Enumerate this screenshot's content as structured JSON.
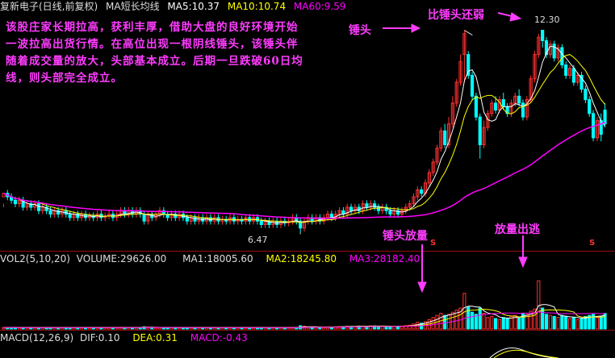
{
  "header_k": {
    "name": "复新电子(日线,前复权)",
    "ma_name": "MA短长均线",
    "ma5": "MA5:10.37",
    "ma10": "MA10:10.74",
    "ma60": "MA60:9.59"
  },
  "header_vol": {
    "name": "VOL2(5,10,20)",
    "volume": "VOLUME:29626.00",
    "ma1": "MA1:18005.60",
    "ma2": "MA2:18245.80",
    "ma3": "MA3:28182.40"
  },
  "header_macd": {
    "name": "MACD(12,26,9)",
    "dif": "DIF:0.10",
    "dea": "DEA:0.31",
    "macd": "MACD:-0.43"
  },
  "annotations": {
    "commentary": "该股庄家长期拉高，获利丰厚，借助大盘的良好环境开始一波拉高出货行情。在高位出现一根阴线锤头，该锤头伴随着成交量的放大，头部基本成立。后期一旦跌破60日均线，则头部完全成立。",
    "hammer": "锤头",
    "weaker": "比锤头还弱",
    "hammer_volume": "锤头放量",
    "volume_escape": "放量出逃",
    "s_marker": "S",
    "high_label": "12.30",
    "low_label": "6.47"
  },
  "colors": {
    "up": "#ff3232",
    "down": "#00ffff",
    "ma5": "#ffffff",
    "ma10": "#ffff00",
    "ma60": "#ff00ff",
    "annotation": "#ff3cff",
    "divider": "#9a1010"
  },
  "chart_data": [
    {
      "type": "candlestick",
      "title": "复新电子(日线,前复权)",
      "y_range": [
        6.2,
        12.8
      ],
      "max_price": 12.3,
      "min_price": 6.47,
      "series": [
        {
          "name": "MA5",
          "last": 10.37
        },
        {
          "name": "MA10",
          "last": 10.74
        },
        {
          "name": "MA60",
          "last": 9.59
        }
      ],
      "candles": [
        [
          7.5,
          7.6,
          7.3,
          7.2
        ],
        [
          7.6,
          7.5,
          7.7,
          7.4
        ],
        [
          7.5,
          7.4,
          7.6,
          7.3
        ],
        [
          7.4,
          7.3,
          7.5,
          7.2
        ],
        [
          7.3,
          7.4,
          7.5,
          7.2
        ],
        [
          7.4,
          7.2,
          7.5,
          7.1
        ],
        [
          7.2,
          7.3,
          7.4,
          7.1
        ],
        [
          7.3,
          7.2,
          7.4,
          7.1
        ],
        [
          7.2,
          7.3,
          7.4,
          7.1
        ],
        [
          7.3,
          7.1,
          7.4,
          7.0
        ],
        [
          7.1,
          7.2,
          7.3,
          7.0
        ],
        [
          7.2,
          7.1,
          7.3,
          7.0
        ],
        [
          7.1,
          7.0,
          7.2,
          6.9
        ],
        [
          7.0,
          7.1,
          7.2,
          6.9
        ],
        [
          7.1,
          7.0,
          7.2,
          6.9
        ],
        [
          7.0,
          7.1,
          7.2,
          6.9
        ],
        [
          7.1,
          7.0,
          7.2,
          6.9
        ],
        [
          7.0,
          6.9,
          7.1,
          6.8
        ],
        [
          6.9,
          7.0,
          7.1,
          6.8
        ],
        [
          7.0,
          6.9,
          7.1,
          6.8
        ],
        [
          6.9,
          7.0,
          7.1,
          6.8
        ],
        [
          7.0,
          6.9,
          7.1,
          6.8
        ],
        [
          6.9,
          6.95,
          7.05,
          6.8
        ],
        [
          6.95,
          6.9,
          7.05,
          6.8
        ],
        [
          6.9,
          7.0,
          7.1,
          6.8
        ],
        [
          7.0,
          6.9,
          7.1,
          6.8
        ],
        [
          6.9,
          6.95,
          7.05,
          6.8
        ],
        [
          6.95,
          7.0,
          7.1,
          6.85
        ],
        [
          7.0,
          6.9,
          7.1,
          6.8
        ],
        [
          6.9,
          7.0,
          7.1,
          6.8
        ],
        [
          7.0,
          7.1,
          7.2,
          6.9
        ],
        [
          7.1,
          7.0,
          7.2,
          6.9
        ],
        [
          7.0,
          7.1,
          7.2,
          6.9
        ],
        [
          7.1,
          7.0,
          7.2,
          6.9
        ],
        [
          7.0,
          7.1,
          7.2,
          6.9
        ],
        [
          7.1,
          7.0,
          7.2,
          6.9
        ],
        [
          7.0,
          6.8,
          7.1,
          6.7
        ],
        [
          6.8,
          7.0,
          7.1,
          6.7
        ],
        [
          7.0,
          6.9,
          7.1,
          6.8
        ],
        [
          6.9,
          7.0,
          7.1,
          6.8
        ],
        [
          7.0,
          7.1,
          7.2,
          6.9
        ],
        [
          7.1,
          7.0,
          7.2,
          6.9
        ],
        [
          7.0,
          6.9,
          7.1,
          6.8
        ],
        [
          6.9,
          7.0,
          7.1,
          6.8
        ],
        [
          7.0,
          6.9,
          7.1,
          6.8
        ],
        [
          6.9,
          7.0,
          7.1,
          6.8
        ],
        [
          7.0,
          6.9,
          7.1,
          6.8
        ],
        [
          6.9,
          6.8,
          7.0,
          6.7
        ],
        [
          6.8,
          6.9,
          7.0,
          6.7
        ],
        [
          6.9,
          6.8,
          7.0,
          6.7
        ],
        [
          6.8,
          6.9,
          7.0,
          6.7
        ],
        [
          6.9,
          6.8,
          7.0,
          6.7
        ],
        [
          6.8,
          6.9,
          7.0,
          6.7
        ],
        [
          6.9,
          6.8,
          7.0,
          6.7
        ],
        [
          6.8,
          6.9,
          7.0,
          6.7
        ],
        [
          6.9,
          6.8,
          7.0,
          6.7
        ],
        [
          6.8,
          6.85,
          6.95,
          6.7
        ],
        [
          6.85,
          6.8,
          6.95,
          6.7
        ],
        [
          6.8,
          6.9,
          7.0,
          6.7
        ],
        [
          6.9,
          6.8,
          7.0,
          6.7
        ],
        [
          6.8,
          6.85,
          6.95,
          6.7
        ],
        [
          6.85,
          6.8,
          6.95,
          6.7
        ],
        [
          6.8,
          6.9,
          7.0,
          6.7
        ],
        [
          6.9,
          6.8,
          7.0,
          6.7
        ],
        [
          6.8,
          6.9,
          7.0,
          6.7
        ],
        [
          6.9,
          6.8,
          7.0,
          6.7
        ],
        [
          6.8,
          6.7,
          6.9,
          6.6
        ],
        [
          6.7,
          6.8,
          6.9,
          6.6
        ],
        [
          6.8,
          6.7,
          6.9,
          6.6
        ],
        [
          6.7,
          6.8,
          6.9,
          6.6
        ],
        [
          6.8,
          6.7,
          6.9,
          6.6
        ],
        [
          6.7,
          6.8,
          6.9,
          6.6
        ],
        [
          6.8,
          6.75,
          6.9,
          6.65
        ],
        [
          6.75,
          6.8,
          6.9,
          6.65
        ],
        [
          6.8,
          6.9,
          7.0,
          6.7
        ],
        [
          6.9,
          6.8,
          7.0,
          6.7
        ],
        [
          6.8,
          6.6,
          6.9,
          6.47
        ],
        [
          6.6,
          6.8,
          6.9,
          6.5
        ],
        [
          6.8,
          6.9,
          7.0,
          6.7
        ],
        [
          6.9,
          6.8,
          7.0,
          6.7
        ],
        [
          6.8,
          6.9,
          7.0,
          6.7
        ],
        [
          6.9,
          6.8,
          7.0,
          6.7
        ],
        [
          6.8,
          6.9,
          7.0,
          6.7
        ],
        [
          6.9,
          7.0,
          7.1,
          6.8
        ],
        [
          7.0,
          6.9,
          7.1,
          6.8
        ],
        [
          6.9,
          7.0,
          7.1,
          6.8
        ],
        [
          7.0,
          7.1,
          7.2,
          6.9
        ],
        [
          7.1,
          7.0,
          7.2,
          6.9
        ],
        [
          7.0,
          7.2,
          7.3,
          6.9
        ],
        [
          7.2,
          7.1,
          7.3,
          7.0
        ],
        [
          7.1,
          7.2,
          7.3,
          7.0
        ],
        [
          7.2,
          7.1,
          7.3,
          7.0
        ],
        [
          7.1,
          7.3,
          7.4,
          7.0
        ],
        [
          7.3,
          7.2,
          7.4,
          7.1
        ],
        [
          7.2,
          7.3,
          7.4,
          7.1
        ],
        [
          7.3,
          7.2,
          7.4,
          7.1
        ],
        [
          7.2,
          7.1,
          7.3,
          7.0
        ],
        [
          7.1,
          7.2,
          7.3,
          7.0
        ],
        [
          7.2,
          7.1,
          7.3,
          7.0
        ],
        [
          7.1,
          7.0,
          7.2,
          6.9
        ],
        [
          7.0,
          7.1,
          7.2,
          6.9
        ],
        [
          7.1,
          7.0,
          7.2,
          6.9
        ],
        [
          7.0,
          7.1,
          7.2,
          6.9
        ],
        [
          7.1,
          7.2,
          7.3,
          7.0
        ],
        [
          7.2,
          7.3,
          7.4,
          7.1
        ],
        [
          7.3,
          7.5,
          7.6,
          7.2
        ],
        [
          7.5,
          7.7,
          7.8,
          7.4
        ],
        [
          7.7,
          7.6,
          7.8,
          7.5
        ],
        [
          7.6,
          7.9,
          8.0,
          7.5
        ],
        [
          7.9,
          8.2,
          8.3,
          7.8
        ],
        [
          8.2,
          8.5,
          8.6,
          8.1
        ],
        [
          8.5,
          8.9,
          9.0,
          8.4
        ],
        [
          8.9,
          9.4,
          9.5,
          8.8
        ],
        [
          9.4,
          9.0,
          9.6,
          8.9
        ],
        [
          9.0,
          9.6,
          9.8,
          8.9
        ],
        [
          9.6,
          10.2,
          10.4,
          9.5
        ],
        [
          10.2,
          10.8,
          10.9,
          10.1
        ],
        [
          10.8,
          11.4,
          11.6,
          10.7
        ],
        [
          11.6,
          12.2,
          12.3,
          10.8
        ],
        [
          11.6,
          11.0,
          11.7,
          10.9
        ],
        [
          11.0,
          10.4,
          11.1,
          10.3
        ],
        [
          10.4,
          9.8,
          10.5,
          9.7
        ],
        [
          9.8,
          9.0,
          9.9,
          8.6
        ],
        [
          9.0,
          9.5,
          9.7,
          8.9
        ],
        [
          9.5,
          9.9,
          10.0,
          9.4
        ],
        [
          9.9,
          10.2,
          10.3,
          9.8
        ],
        [
          10.2,
          10.0,
          10.4,
          9.9
        ],
        [
          10.0,
          10.3,
          10.4,
          9.9
        ],
        [
          10.3,
          10.1,
          10.5,
          10.0
        ],
        [
          10.1,
          9.9,
          10.2,
          9.8
        ],
        [
          9.9,
          10.2,
          10.3,
          9.8
        ],
        [
          10.2,
          10.4,
          10.5,
          10.1
        ],
        [
          10.4,
          10.2,
          10.6,
          10.1
        ],
        [
          10.2,
          9.8,
          10.3,
          9.7
        ],
        [
          9.8,
          10.3,
          10.4,
          9.7
        ],
        [
          10.3,
          10.9,
          11.0,
          10.2
        ],
        [
          10.9,
          11.6,
          11.7,
          10.8
        ],
        [
          11.6,
          12.1,
          12.2,
          11.5
        ],
        [
          12.3,
          12.0,
          12.3,
          11.8
        ],
        [
          12.0,
          11.6,
          12.1,
          11.5
        ],
        [
          11.6,
          11.9,
          12.0,
          11.5
        ],
        [
          11.9,
          11.5,
          12.0,
          11.4
        ],
        [
          11.5,
          11.8,
          11.9,
          11.4
        ],
        [
          11.8,
          11.3,
          11.9,
          11.2
        ],
        [
          11.3,
          11.0,
          11.4,
          10.9
        ],
        [
          11.0,
          11.2,
          11.3,
          10.9
        ],
        [
          11.2,
          10.8,
          11.3,
          10.7
        ],
        [
          10.8,
          11.0,
          11.1,
          10.7
        ],
        [
          11.0,
          10.6,
          11.1,
          10.5
        ],
        [
          10.6,
          10.3,
          10.7,
          10.2
        ],
        [
          10.3,
          9.9,
          10.4,
          9.8
        ],
        [
          9.9,
          9.2,
          10.0,
          9.1
        ],
        [
          9.2,
          9.7,
          9.8,
          9.1
        ],
        [
          9.7,
          9.3,
          9.9,
          9.1
        ],
        [
          10.0,
          9.6,
          10.2,
          9.5
        ]
      ]
    },
    {
      "type": "bar",
      "title": "VOL2(5,10,20)",
      "series": [
        {
          "name": "VOLUME",
          "last": 29626.0
        },
        {
          "name": "MA1",
          "last": 18005.6
        },
        {
          "name": "MA2",
          "last": 18245.8
        },
        {
          "name": "MA3",
          "last": 28182.4
        }
      ],
      "y_range": [
        0,
        120000
      ],
      "volumes": [
        3000,
        2500,
        2800,
        3200,
        2600,
        2400,
        2900,
        3100,
        2700,
        2500,
        2600,
        2800,
        3000,
        2400,
        2200,
        2600,
        2900,
        2500,
        2300,
        2700,
        2400,
        2800,
        3100,
        2600,
        2500,
        2900,
        2700,
        2400,
        2600,
        3000,
        3200,
        2800,
        2600,
        2500,
        2900,
        3100,
        4200,
        3600,
        2800,
        2600,
        2500,
        2700,
        3000,
        2900,
        2600,
        2400,
        2700,
        2500,
        2300,
        2600,
        2800,
        2500,
        2400,
        2700,
        2600,
        2300,
        2500,
        2700,
        2600,
        2400,
        2500,
        2800,
        2600,
        2400,
        2700,
        2900,
        3100,
        2800,
        2600,
        2500,
        2700,
        2600,
        2400,
        2800,
        3000,
        2900,
        6200,
        5400,
        3600,
        3000,
        3200,
        3400,
        3600,
        4000,
        3800,
        4200,
        4600,
        4400,
        5200,
        5000,
        4800,
        5600,
        5400,
        5200,
        6000,
        5800,
        5400,
        5600,
        5200,
        5000,
        4800,
        5200,
        5600,
        6400,
        7200,
        9600,
        12800,
        11000,
        14000,
        18000,
        22000,
        26000,
        30000,
        26000,
        28000,
        32000,
        36000,
        40000,
        68000,
        42000,
        32000,
        28000,
        40000,
        30000,
        22000,
        24000,
        20000,
        18000,
        22000,
        20000,
        24000,
        26000,
        22000,
        30000,
        28000,
        34000,
        38000,
        92000,
        40000,
        28000,
        26000,
        24000,
        22000,
        26000,
        24000,
        20000,
        22000,
        18000,
        20000,
        24000,
        26000,
        28000,
        22000,
        24000,
        29626
      ],
      "ma_vol_1": [
        8000,
        9000,
        12000,
        16000,
        18000,
        18005.6
      ],
      "ma_vol_2": [
        9000,
        10000,
        11000,
        14000,
        17000,
        18245.8
      ],
      "ma_vol_3": [
        7000,
        8000,
        9500,
        11000,
        13000,
        28182.4
      ]
    },
    {
      "type": "line",
      "title": "MACD(12,26,9)",
      "series": [
        {
          "name": "DIF",
          "last": 0.1
        },
        {
          "name": "DEA",
          "last": 0.31
        },
        {
          "name": "MACD",
          "last": -0.43
        }
      ]
    }
  ]
}
